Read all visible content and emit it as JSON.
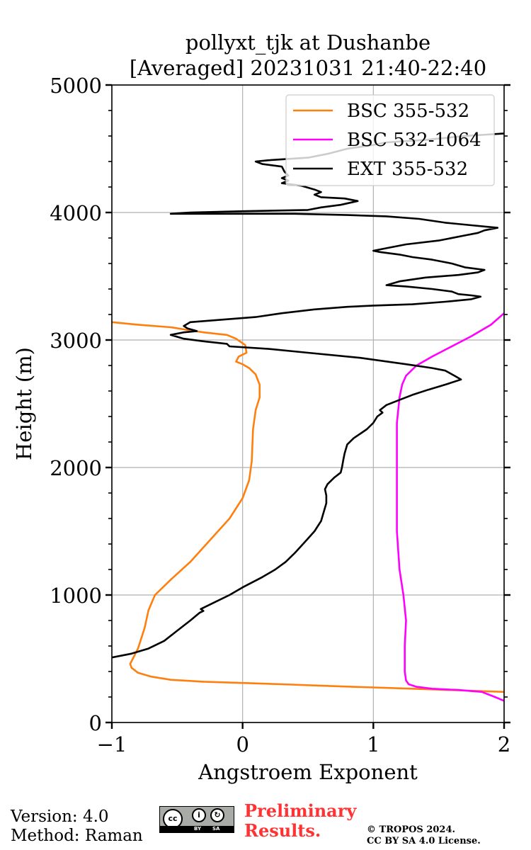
{
  "chart_data": {
    "type": "line",
    "title": "pollyxt_tjk at Dushanbe",
    "subtitle": "[Averaged] 20231031 21:40-22:40",
    "xlabel": "Angstroem Exponent",
    "ylabel": "Height (m)",
    "xlim": [
      -1,
      2
    ],
    "ylim": [
      0,
      5000
    ],
    "xticks": [
      "−1",
      "0",
      "1",
      "2"
    ],
    "yticks": [
      "0",
      "1000",
      "2000",
      "3000",
      "4000",
      "5000"
    ],
    "grid": true,
    "legend_position": "top-right",
    "series": [
      {
        "name": "BSC 355-532",
        "color": "#ff7f0e",
        "points": [
          [
            2.0,
            240
          ],
          [
            1.3,
            265
          ],
          [
            0.7,
            285
          ],
          [
            0.3,
            300
          ],
          [
            0.0,
            310
          ],
          [
            -0.3,
            320
          ],
          [
            -0.55,
            335
          ],
          [
            -0.7,
            360
          ],
          [
            -0.8,
            390
          ],
          [
            -0.85,
            430
          ],
          [
            -0.86,
            460
          ],
          [
            -0.8,
            580
          ],
          [
            -0.75,
            740
          ],
          [
            -0.72,
            880
          ],
          [
            -0.67,
            1000
          ],
          [
            -0.55,
            1120
          ],
          [
            -0.4,
            1260
          ],
          [
            -0.25,
            1430
          ],
          [
            -0.1,
            1600
          ],
          [
            0.0,
            1760
          ],
          [
            0.05,
            1900
          ],
          [
            0.07,
            2050
          ],
          [
            0.08,
            2300
          ],
          [
            0.1,
            2450
          ],
          [
            0.13,
            2550
          ],
          [
            0.13,
            2650
          ],
          [
            0.1,
            2730
          ],
          [
            0.05,
            2780
          ],
          [
            0.0,
            2810
          ],
          [
            -0.05,
            2830
          ],
          [
            -0.03,
            2870
          ],
          [
            0.03,
            2900
          ],
          [
            0.02,
            2960
          ],
          [
            -0.05,
            3010
          ],
          [
            -0.12,
            3040
          ],
          [
            -0.3,
            3060
          ],
          [
            -0.55,
            3100
          ],
          [
            -0.8,
            3120
          ],
          [
            -1.0,
            3140
          ]
        ]
      },
      {
        "name": "BSC 532-1064",
        "color": "#ff00ff",
        "points": [
          [
            2.0,
            170
          ],
          [
            1.93,
            200
          ],
          [
            1.83,
            240
          ],
          [
            1.65,
            255
          ],
          [
            1.45,
            265
          ],
          [
            1.33,
            280
          ],
          [
            1.27,
            300
          ],
          [
            1.25,
            330
          ],
          [
            1.24,
            400
          ],
          [
            1.24,
            600
          ],
          [
            1.25,
            800
          ],
          [
            1.23,
            1000
          ],
          [
            1.2,
            1200
          ],
          [
            1.18,
            1500
          ],
          [
            1.18,
            1800
          ],
          [
            1.18,
            2100
          ],
          [
            1.18,
            2350
          ],
          [
            1.2,
            2550
          ],
          [
            1.22,
            2650
          ],
          [
            1.25,
            2720
          ],
          [
            1.33,
            2800
          ],
          [
            1.45,
            2870
          ],
          [
            1.6,
            2950
          ],
          [
            1.75,
            3030
          ],
          [
            1.9,
            3120
          ],
          [
            2.0,
            3210
          ]
        ]
      },
      {
        "name": "EXT 355-532",
        "color": "#000000",
        "points": [
          [
            -1.0,
            510
          ],
          [
            -0.85,
            540
          ],
          [
            -0.72,
            580
          ],
          [
            -0.6,
            640
          ],
          [
            -0.5,
            720
          ],
          [
            -0.4,
            800
          ],
          [
            -0.33,
            860
          ],
          [
            -0.3,
            875
          ],
          [
            -0.32,
            890
          ],
          [
            -0.22,
            940
          ],
          [
            -0.1,
            1000
          ],
          [
            0.0,
            1060
          ],
          [
            0.15,
            1140
          ],
          [
            0.25,
            1200
          ],
          [
            0.33,
            1260
          ],
          [
            0.4,
            1330
          ],
          [
            0.48,
            1420
          ],
          [
            0.55,
            1500
          ],
          [
            0.6,
            1580
          ],
          [
            0.62,
            1650
          ],
          [
            0.64,
            1720
          ],
          [
            0.64,
            1780
          ],
          [
            0.63,
            1830
          ],
          [
            0.65,
            1870
          ],
          [
            0.7,
            1920
          ],
          [
            0.75,
            1960
          ],
          [
            0.76,
            2000
          ],
          [
            0.77,
            2060
          ],
          [
            0.78,
            2110
          ],
          [
            0.8,
            2180
          ],
          [
            0.85,
            2230
          ],
          [
            0.95,
            2300
          ],
          [
            1.0,
            2350
          ],
          [
            1.03,
            2400
          ],
          [
            1.07,
            2430
          ],
          [
            1.05,
            2450
          ],
          [
            1.1,
            2490
          ],
          [
            1.2,
            2530
          ],
          [
            1.3,
            2570
          ],
          [
            1.42,
            2610
          ],
          [
            1.55,
            2650
          ],
          [
            1.67,
            2690
          ],
          [
            1.62,
            2720
          ],
          [
            1.55,
            2760
          ],
          [
            1.45,
            2780
          ],
          [
            1.25,
            2810
          ],
          [
            0.9,
            2860
          ],
          [
            0.5,
            2900
          ],
          [
            0.2,
            2930
          ],
          [
            -0.1,
            2950
          ],
          [
            -0.12,
            2970
          ],
          [
            -0.3,
            2990
          ],
          [
            -0.45,
            3010
          ],
          [
            -0.55,
            3040
          ],
          [
            -0.45,
            3060
          ],
          [
            -0.35,
            3070
          ],
          [
            -0.42,
            3090
          ],
          [
            -0.45,
            3110
          ],
          [
            -0.4,
            3140
          ],
          [
            -0.15,
            3160
          ],
          [
            0.1,
            3180
          ],
          [
            0.3,
            3210
          ],
          [
            0.55,
            3240
          ],
          [
            0.8,
            3260
          ],
          [
            1.0,
            3270
          ],
          [
            1.3,
            3280
          ],
          [
            1.55,
            3300
          ],
          [
            1.75,
            3320
          ],
          [
            1.82,
            3340
          ],
          [
            1.75,
            3350
          ],
          [
            1.65,
            3360
          ],
          [
            1.6,
            3380
          ],
          [
            1.45,
            3400
          ],
          [
            1.25,
            3420
          ],
          [
            1.1,
            3430
          ],
          [
            1.2,
            3460
          ],
          [
            1.4,
            3490
          ],
          [
            1.65,
            3510
          ],
          [
            1.8,
            3530
          ],
          [
            1.85,
            3550
          ],
          [
            1.7,
            3570
          ],
          [
            1.6,
            3600
          ],
          [
            1.45,
            3630
          ],
          [
            1.3,
            3650
          ],
          [
            1.2,
            3670
          ],
          [
            1.05,
            3690
          ],
          [
            1.0,
            3700
          ],
          [
            1.1,
            3720
          ],
          [
            1.25,
            3750
          ],
          [
            1.5,
            3780
          ],
          [
            1.7,
            3820
          ],
          [
            1.8,
            3840
          ],
          [
            1.85,
            3860
          ],
          [
            1.95,
            3880
          ],
          [
            1.75,
            3900
          ],
          [
            1.55,
            3920
          ],
          [
            1.35,
            3950
          ],
          [
            1.1,
            3970
          ],
          [
            0.8,
            3980
          ],
          [
            0.4,
            3990
          ],
          [
            0.0,
            3990
          ],
          [
            -0.3,
            3990
          ],
          [
            -0.55,
            3990
          ],
          [
            -0.4,
            4000
          ],
          [
            0.0,
            4010
          ],
          [
            0.5,
            4020
          ],
          [
            0.6,
            4040
          ],
          [
            0.75,
            4060
          ],
          [
            0.88,
            4090
          ],
          [
            0.78,
            4110
          ],
          [
            0.6,
            4120
          ],
          [
            0.55,
            4140
          ],
          [
            0.6,
            4160
          ],
          [
            0.55,
            4180
          ],
          [
            0.45,
            4210
          ],
          [
            0.3,
            4230
          ],
          [
            0.35,
            4250
          ],
          [
            0.3,
            4270
          ],
          [
            0.35,
            4290
          ],
          [
            0.32,
            4320
          ],
          [
            0.3,
            4360
          ],
          [
            0.15,
            4380
          ],
          [
            0.1,
            4400
          ],
          [
            0.2,
            4410
          ],
          [
            0.5,
            4430
          ],
          [
            0.65,
            4460
          ],
          [
            0.8,
            4500
          ],
          [
            1.0,
            4530
          ],
          [
            1.1,
            4550
          ],
          [
            1.4,
            4570
          ],
          [
            1.7,
            4600
          ],
          [
            2.0,
            4620
          ]
        ]
      }
    ]
  },
  "footer": {
    "version": "Version: 4.0",
    "method": "Method: Raman",
    "preliminary_line1": "Preliminary",
    "preliminary_line2": "Results.",
    "copyright_line1": "© TROPOS 2024.",
    "copyright_line2": "CC BY SA 4.0 License.",
    "license_badge": "cc-by-sa-icon"
  }
}
